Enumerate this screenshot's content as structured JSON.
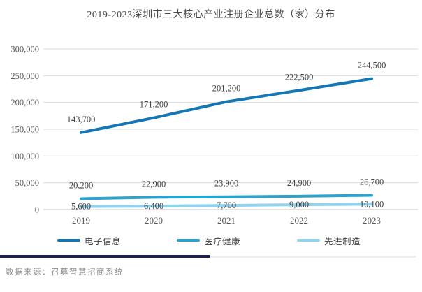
{
  "title": "2019-2023深圳市三大核心产业注册企业总数（家）分布",
  "chart_data": {
    "type": "line",
    "categories": [
      "2019",
      "2020",
      "2021",
      "2022",
      "2023"
    ],
    "series": [
      {
        "name": "电子信息",
        "color": "#1376b5",
        "values": [
          143700,
          171200,
          201200,
          222500,
          244500
        ],
        "value_labels": [
          "143,700",
          "171,200",
          "201,200",
          "222,500",
          "244,500"
        ]
      },
      {
        "name": "医疗健康",
        "color": "#2ba3cf",
        "values": [
          20200,
          22900,
          23900,
          24900,
          26700
        ],
        "value_labels": [
          "20,200",
          "22,900",
          "23,900",
          "24,900",
          "26,700"
        ]
      },
      {
        "name": "先进制造",
        "color": "#8fd3ee",
        "values": [
          5600,
          6400,
          7700,
          9000,
          10100
        ],
        "value_labels": [
          "5,600",
          "6,400",
          "7,700",
          "9,000",
          "10,100"
        ]
      }
    ],
    "ylim": [
      0,
      300000
    ],
    "ytick_step": 50000,
    "ytick_labels": [
      "0",
      "50,000",
      "100,000",
      "150,000",
      "200,000",
      "250,000",
      "300,000"
    ],
    "xlabel": "",
    "ylabel": "",
    "grid": "on",
    "legend_position": "bottom",
    "colors": {
      "gridline": "#d9d9d9",
      "zero_line": "#c9c9c9",
      "tick_label": "#595959",
      "data_label": "#404040"
    }
  },
  "footer": {
    "source_text": "数据来源：召募智慧招商系统",
    "divider_dark_color": "#1e1e55",
    "divider_light_color": "#ededed"
  }
}
